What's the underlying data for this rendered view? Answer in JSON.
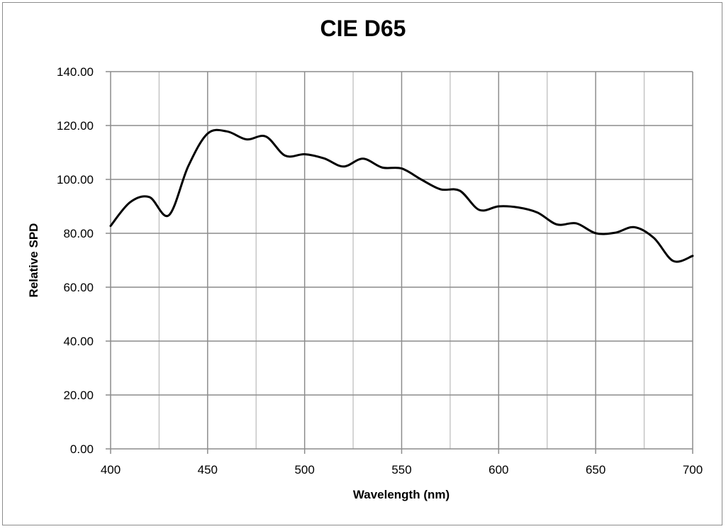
{
  "chart_data": {
    "type": "line",
    "title": "CIE D65",
    "xlabel": "Wavelength (nm)",
    "ylabel": "Relative SPD",
    "xlim": [
      400,
      700
    ],
    "ylim": [
      0,
      140
    ],
    "x_ticks": [
      "400",
      "450",
      "500",
      "550",
      "600",
      "650",
      "700"
    ],
    "x_minor_ticks": [
      425,
      475,
      525,
      575,
      625,
      675
    ],
    "y_ticks": [
      "0.00",
      "20.00",
      "40.00",
      "60.00",
      "80.00",
      "100.00",
      "120.00",
      "140.00"
    ],
    "grid": true,
    "legend": null,
    "line_color": "#000000",
    "grid_major_color": "#8c8c8c",
    "grid_minor_color": "#bfbfbf",
    "x": [
      400,
      410,
      420,
      430,
      440,
      450,
      460,
      470,
      480,
      490,
      500,
      510,
      520,
      530,
      540,
      550,
      560,
      570,
      580,
      590,
      600,
      610,
      620,
      630,
      640,
      650,
      660,
      670,
      680,
      690,
      700
    ],
    "series": [
      {
        "name": "CIE D65",
        "values": [
          82.75,
          91.49,
          93.43,
          86.68,
          104.86,
          117.01,
          117.81,
          114.86,
          115.92,
          108.81,
          109.35,
          107.8,
          104.79,
          107.69,
          104.41,
          104.05,
          100.0,
          96.33,
          95.79,
          88.69,
          90.01,
          89.6,
          87.7,
          83.29,
          83.7,
          80.03,
          80.21,
          82.28,
          78.28,
          69.72,
          71.61
        ]
      }
    ]
  }
}
